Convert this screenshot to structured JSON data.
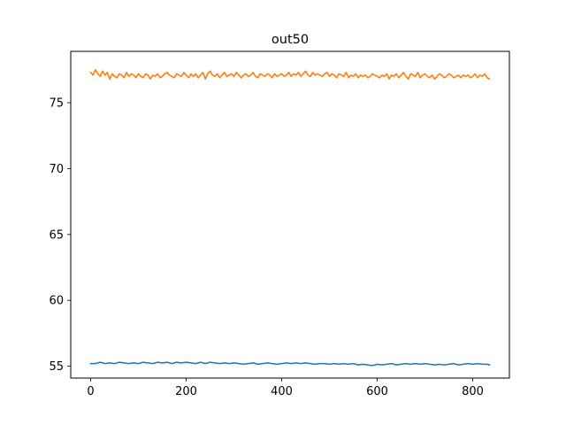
{
  "chart_data": {
    "type": "line",
    "title": "out50",
    "xlabel": "",
    "ylabel": "",
    "xlim": [
      -41.75,
      876.75
    ],
    "ylim": [
      54.1,
      78.9
    ],
    "xticks": [
      0,
      200,
      400,
      600,
      800
    ],
    "yticks": [
      55,
      60,
      65,
      70,
      75
    ],
    "grid": false,
    "legend": null,
    "series": [
      {
        "color": "#ff7f0e",
        "x": [
          0,
          5,
          10,
          15,
          20,
          25,
          30,
          35,
          40,
          45,
          50,
          55,
          60,
          65,
          70,
          75,
          80,
          85,
          90,
          95,
          100,
          105,
          110,
          115,
          120,
          125,
          130,
          135,
          140,
          145,
          150,
          155,
          160,
          165,
          170,
          175,
          180,
          185,
          190,
          195,
          200,
          205,
          210,
          215,
          220,
          225,
          230,
          235,
          240,
          245,
          250,
          255,
          260,
          265,
          270,
          275,
          280,
          285,
          290,
          295,
          300,
          305,
          310,
          315,
          320,
          325,
          330,
          335,
          340,
          345,
          350,
          355,
          360,
          365,
          370,
          375,
          380,
          385,
          390,
          395,
          400,
          405,
          410,
          415,
          420,
          425,
          430,
          435,
          440,
          445,
          450,
          455,
          460,
          465,
          470,
          475,
          480,
          485,
          490,
          495,
          500,
          505,
          510,
          515,
          520,
          525,
          530,
          535,
          540,
          545,
          550,
          555,
          560,
          565,
          570,
          575,
          580,
          585,
          590,
          595,
          600,
          605,
          610,
          615,
          620,
          625,
          630,
          635,
          640,
          645,
          650,
          655,
          660,
          665,
          670,
          675,
          680,
          685,
          690,
          695,
          700,
          705,
          710,
          715,
          720,
          725,
          730,
          735,
          740,
          745,
          750,
          755,
          760,
          765,
          770,
          775,
          780,
          785,
          790,
          795,
          800,
          805,
          810,
          815,
          820,
          825,
          830,
          835
        ],
        "y": [
          77.3,
          77.1,
          77.5,
          77.2,
          77.0,
          77.4,
          77.1,
          77.3,
          76.8,
          77.2,
          77.0,
          76.9,
          77.2,
          77.1,
          76.9,
          77.3,
          77.0,
          77.2,
          77.1,
          76.9,
          77.2,
          77.0,
          76.9,
          77.2,
          77.1,
          76.8,
          77.1,
          77.0,
          77.2,
          76.9,
          77.0,
          77.2,
          77.3,
          77.1,
          77.0,
          76.9,
          77.2,
          77.1,
          77.0,
          77.3,
          77.1,
          76.9,
          77.2,
          77.0,
          77.2,
          76.9,
          77.1,
          77.3,
          76.8,
          77.2,
          77.4,
          77.1,
          77.0,
          77.2,
          76.9,
          77.1,
          77.3,
          77.0,
          77.1,
          77.2,
          77.0,
          77.3,
          77.1,
          76.9,
          77.1,
          77.2,
          77.0,
          77.1,
          77.3,
          77.0,
          76.9,
          77.2,
          77.1,
          77.0,
          77.2,
          77.1,
          76.9,
          77.2,
          77.0,
          77.1,
          77.2,
          77.0,
          77.1,
          77.3,
          77.0,
          77.2,
          77.1,
          77.3,
          77.0,
          77.2,
          77.4,
          77.1,
          77.0,
          77.3,
          77.1,
          77.2,
          77.1,
          77.0,
          77.2,
          77.3,
          77.0,
          77.2,
          77.1,
          76.9,
          77.2,
          77.1,
          77.0,
          77.3,
          76.9,
          77.1,
          77.0,
          77.2,
          76.9,
          77.1,
          77.0,
          77.1,
          76.9,
          77.0,
          77.2,
          77.1,
          77.0,
          76.9,
          77.1,
          77.0,
          77.2,
          76.8,
          77.1,
          77.0,
          77.2,
          76.9,
          77.1,
          77.3,
          77.0,
          76.8,
          77.2,
          77.1,
          77.0,
          77.3,
          76.9,
          77.1,
          77.2,
          77.0,
          76.9,
          77.1,
          76.8,
          77.0,
          77.2,
          77.1,
          76.9,
          77.0,
          77.2,
          77.1,
          76.9,
          77.0,
          77.1,
          76.9,
          77.1,
          77.0,
          77.1,
          76.9,
          77.0,
          77.2,
          76.9,
          77.1,
          77.0,
          77.2,
          76.9,
          76.8
        ]
      },
      {
        "color": "#1f77b4",
        "x": [
          0,
          10,
          20,
          30,
          40,
          50,
          60,
          70,
          80,
          90,
          100,
          110,
          120,
          130,
          140,
          150,
          160,
          170,
          180,
          190,
          200,
          210,
          220,
          230,
          240,
          250,
          260,
          270,
          280,
          290,
          300,
          310,
          320,
          330,
          340,
          350,
          360,
          370,
          380,
          390,
          400,
          410,
          420,
          430,
          440,
          450,
          460,
          470,
          480,
          490,
          500,
          510,
          520,
          530,
          540,
          550,
          560,
          570,
          580,
          590,
          600,
          610,
          620,
          630,
          640,
          650,
          660,
          670,
          680,
          690,
          700,
          710,
          720,
          730,
          740,
          750,
          760,
          770,
          780,
          790,
          800,
          810,
          820,
          830,
          835
        ],
        "y": [
          55.2,
          55.2,
          55.3,
          55.2,
          55.25,
          55.2,
          55.3,
          55.25,
          55.2,
          55.25,
          55.2,
          55.3,
          55.25,
          55.2,
          55.3,
          55.25,
          55.3,
          55.2,
          55.3,
          55.25,
          55.3,
          55.25,
          55.2,
          55.3,
          55.2,
          55.3,
          55.25,
          55.2,
          55.25,
          55.2,
          55.25,
          55.2,
          55.15,
          55.2,
          55.25,
          55.15,
          55.2,
          55.25,
          55.2,
          55.15,
          55.2,
          55.25,
          55.2,
          55.25,
          55.2,
          55.25,
          55.2,
          55.15,
          55.2,
          55.2,
          55.15,
          55.2,
          55.15,
          55.2,
          55.15,
          55.2,
          55.1,
          55.15,
          55.1,
          55.05,
          55.15,
          55.1,
          55.15,
          55.2,
          55.1,
          55.15,
          55.2,
          55.15,
          55.2,
          55.15,
          55.2,
          55.15,
          55.1,
          55.15,
          55.1,
          55.15,
          55.2,
          55.1,
          55.15,
          55.2,
          55.15,
          55.2,
          55.15,
          55.15,
          55.1
        ]
      }
    ]
  }
}
